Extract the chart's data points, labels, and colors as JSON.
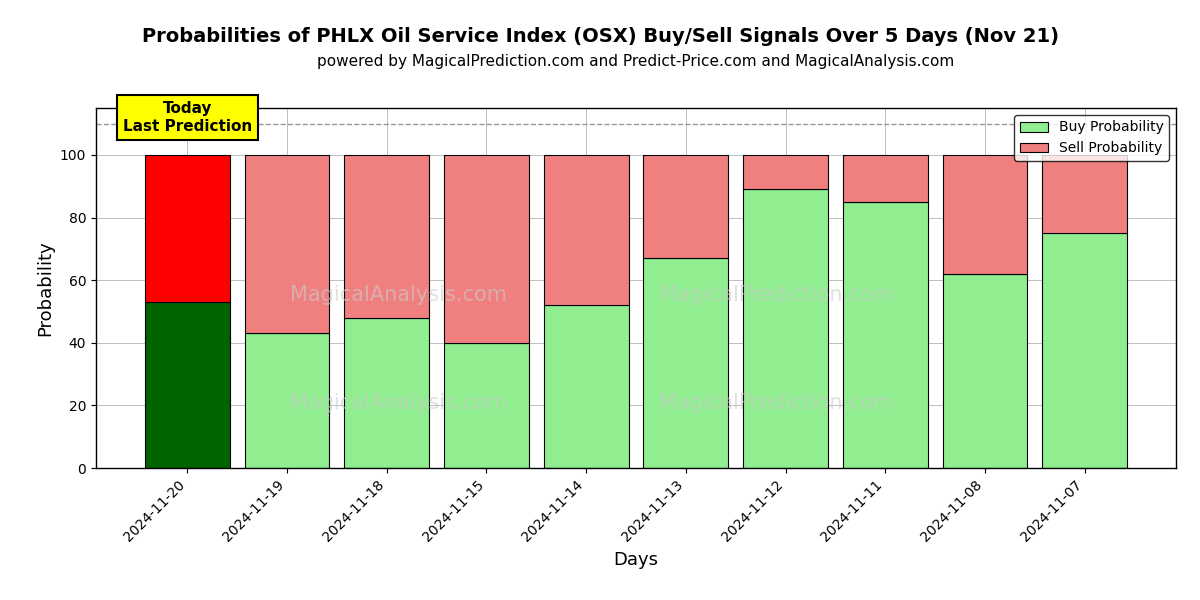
{
  "title": "Probabilities of PHLX Oil Service Index (OSX) Buy/Sell Signals Over 5 Days (Nov 21)",
  "subtitle": "powered by MagicalPrediction.com and Predict-Price.com and MagicalAnalysis.com",
  "xlabel": "Days",
  "ylabel": "Probability",
  "categories": [
    "2024-11-20",
    "2024-11-19",
    "2024-11-18",
    "2024-11-15",
    "2024-11-14",
    "2024-11-13",
    "2024-11-12",
    "2024-11-11",
    "2024-11-08",
    "2024-11-07"
  ],
  "buy_values": [
    53,
    43,
    48,
    40,
    52,
    67,
    89,
    85,
    62,
    75
  ],
  "sell_values": [
    47,
    57,
    52,
    60,
    48,
    33,
    11,
    15,
    38,
    25
  ],
  "buy_colors": [
    "#006400",
    "#90EE90",
    "#90EE90",
    "#90EE90",
    "#90EE90",
    "#90EE90",
    "#90EE90",
    "#90EE90",
    "#90EE90",
    "#90EE90"
  ],
  "sell_colors": [
    "#FF0000",
    "#F08080",
    "#F08080",
    "#F08080",
    "#F08080",
    "#F08080",
    "#F08080",
    "#F08080",
    "#F08080",
    "#F08080"
  ],
  "buy_legend_color": "#90EE90",
  "sell_legend_color": "#F08080",
  "ylim": [
    0,
    115
  ],
  "yticks": [
    0,
    20,
    40,
    60,
    80,
    100
  ],
  "dashed_line_y": 110,
  "today_label": "Today\nLast Prediction",
  "today_label_bg": "#FFFF00",
  "title_fontsize": 14,
  "subtitle_fontsize": 11,
  "axis_label_fontsize": 13,
  "tick_fontsize": 10,
  "bar_width": 0.85,
  "bar_edge_color": "#000000",
  "bar_linewidth": 0.8
}
